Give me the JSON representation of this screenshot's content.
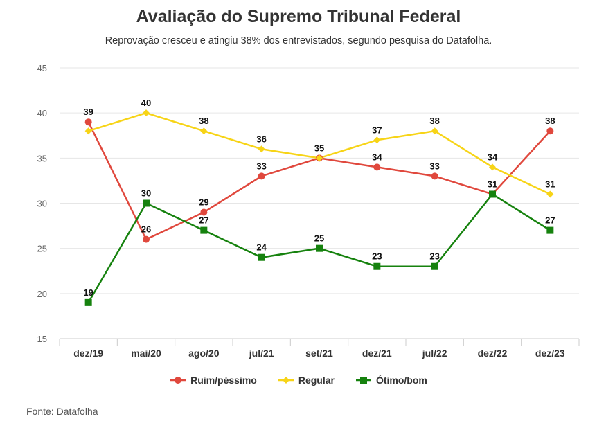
{
  "header": {
    "title": "Avaliação do Supremo Tribunal Federal",
    "subtitle": "Reprovação cresceu e atingiu 38% dos entrevistados, segundo pesquisa do Datafolha."
  },
  "footer": {
    "source": "Fonte: Datafolha"
  },
  "chart_data": {
    "type": "line",
    "title": "Avaliação do Supremo Tribunal Federal",
    "subtitle": "Reprovação cresceu e atingiu 38% dos entrevistados, segundo pesquisa do Datafolha.",
    "categories": [
      "dez/19",
      "mai/20",
      "ago/20",
      "jul/21",
      "set/21",
      "dez/21",
      "jul/22",
      "dez/22",
      "dez/23"
    ],
    "ylim": [
      15,
      45
    ],
    "yticks": [
      15,
      20,
      25,
      30,
      35,
      40,
      45
    ],
    "grid": true,
    "legend_position": "bottom",
    "series": [
      {
        "name": "Ruim/péssimo",
        "color": "#e0483d",
        "marker": "circle",
        "values": [
          39,
          26,
          29,
          33,
          35,
          34,
          33,
          31,
          38
        ]
      },
      {
        "name": "Regular",
        "color": "#f7d417",
        "marker": "diamond",
        "values": [
          38,
          40,
          38,
          36,
          35,
          37,
          38,
          34,
          31
        ]
      },
      {
        "name": "Ótimo/bom",
        "color": "#16820e",
        "marker": "square",
        "values": [
          19,
          30,
          27,
          24,
          25,
          23,
          23,
          31,
          27
        ]
      }
    ],
    "data_labels": [
      {
        "series": 0,
        "index": 0,
        "text": "39"
      },
      {
        "series": 0,
        "index": 1,
        "text": "26"
      },
      {
        "series": 0,
        "index": 2,
        "text": "29"
      },
      {
        "series": 0,
        "index": 3,
        "text": "33"
      },
      {
        "series": 0,
        "index": 5,
        "text": "34"
      },
      {
        "series": 0,
        "index": 6,
        "text": "33"
      },
      {
        "series": 0,
        "index": 8,
        "text": "38"
      },
      {
        "series": 1,
        "index": 1,
        "text": "40"
      },
      {
        "series": 1,
        "index": 2,
        "text": "38"
      },
      {
        "series": 1,
        "index": 3,
        "text": "36"
      },
      {
        "series": 1,
        "index": 4,
        "text": "35"
      },
      {
        "series": 1,
        "index": 5,
        "text": "37"
      },
      {
        "series": 1,
        "index": 6,
        "text": "38"
      },
      {
        "series": 1,
        "index": 7,
        "text": "34"
      },
      {
        "series": 1,
        "index": 8,
        "text": "31"
      },
      {
        "series": 2,
        "index": 0,
        "text": "19"
      },
      {
        "series": 2,
        "index": 1,
        "text": "30"
      },
      {
        "series": 2,
        "index": 2,
        "text": "27"
      },
      {
        "series": 2,
        "index": 3,
        "text": "24"
      },
      {
        "series": 2,
        "index": 4,
        "text": "25"
      },
      {
        "series": 2,
        "index": 5,
        "text": "23"
      },
      {
        "series": 2,
        "index": 6,
        "text": "23"
      },
      {
        "series": 2,
        "index": 7,
        "text": "31"
      },
      {
        "series": 2,
        "index": 8,
        "text": "27"
      }
    ]
  }
}
